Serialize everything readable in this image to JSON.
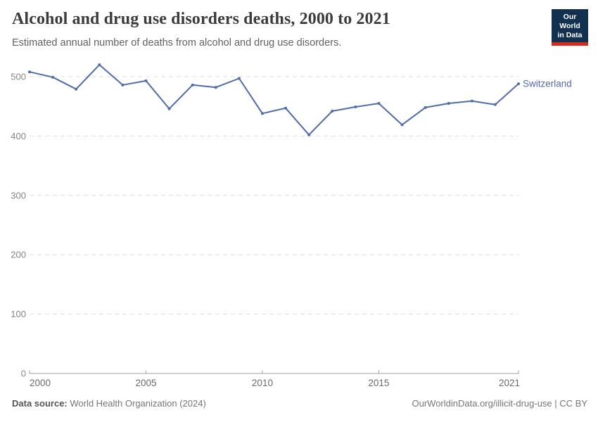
{
  "header": {
    "title": "Alcohol and drug use disorders deaths, 2000 to 2021",
    "subtitle": "Estimated annual number of deaths from alcohol and drug use disorders.",
    "logo": {
      "line1": "Our World",
      "line2": "in Data",
      "bg_color": "#12304f",
      "accent_color": "#d42b1f"
    }
  },
  "chart_data": {
    "type": "line",
    "title": "Alcohol and drug use disorders deaths, 2000 to 2021",
    "x": [
      2000,
      2001,
      2002,
      2003,
      2004,
      2005,
      2006,
      2007,
      2008,
      2009,
      2010,
      2011,
      2012,
      2013,
      2014,
      2015,
      2016,
      2017,
      2018,
      2019,
      2020,
      2021
    ],
    "series": [
      {
        "name": "Switzerland",
        "color": "#4f6cab",
        "values": [
          508,
          499,
          479,
          520,
          486,
          493,
          446,
          486,
          482,
          497,
          438,
          447,
          402,
          442,
          449,
          455,
          419,
          448,
          455,
          459,
          453,
          488
        ]
      }
    ],
    "entity_label": "Switzerland",
    "x_ticks": [
      2000,
      2005,
      2010,
      2015,
      2021
    ],
    "y_ticks": [
      0,
      100,
      200,
      300,
      400,
      500
    ],
    "xlim": [
      2000,
      2021
    ],
    "ylim": [
      0,
      520
    ],
    "grid": "horizontal-dashed",
    "legend_position": "line-end-label",
    "colors": {
      "grid": "#dcdcdc",
      "axis": "#a0a0a0",
      "y_tick_label": "#858585",
      "x_tick_label": "#6b6b6b"
    }
  },
  "footer": {
    "source_label": "Data source:",
    "source_value": " World Health Organization (2024)",
    "credit": "OurWorldinData.org/illicit-drug-use | CC BY"
  }
}
